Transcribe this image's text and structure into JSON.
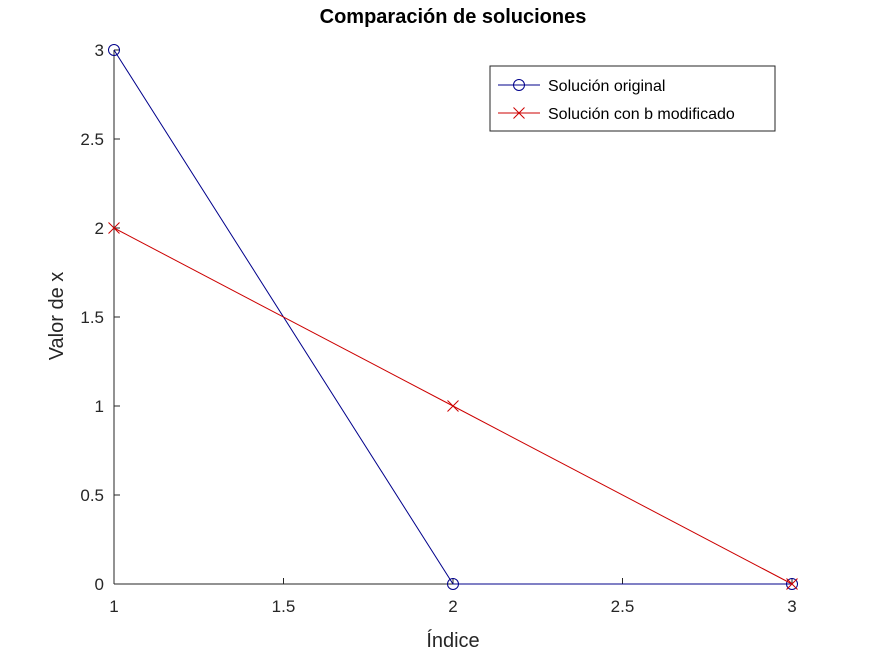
{
  "chart_data": {
    "type": "line",
    "title": "Comparación de soluciones",
    "xlabel": "Índice",
    "ylabel": "Valor de x",
    "xlim": [
      1,
      3
    ],
    "ylim": [
      0,
      3
    ],
    "xticks": [
      1,
      1.5,
      2,
      2.5,
      3
    ],
    "xtick_labels": [
      "1",
      "1.5",
      "2",
      "2.5",
      "3"
    ],
    "yticks": [
      0,
      0.5,
      1,
      1.5,
      2,
      2.5,
      3
    ],
    "ytick_labels": [
      "0",
      "0.5",
      "1",
      "1.5",
      "2",
      "2.5",
      "3"
    ],
    "grid": false,
    "legend_position": "top-right",
    "series": [
      {
        "name": "Solución original",
        "x": [
          1,
          2,
          3
        ],
        "y": [
          3,
          0,
          0
        ],
        "color": "#00008b",
        "marker": "circle"
      },
      {
        "name": "Solución con b modificado",
        "x": [
          1,
          2,
          3
        ],
        "y": [
          2,
          1,
          0
        ],
        "color": "#cc0000",
        "marker": "x"
      }
    ]
  }
}
